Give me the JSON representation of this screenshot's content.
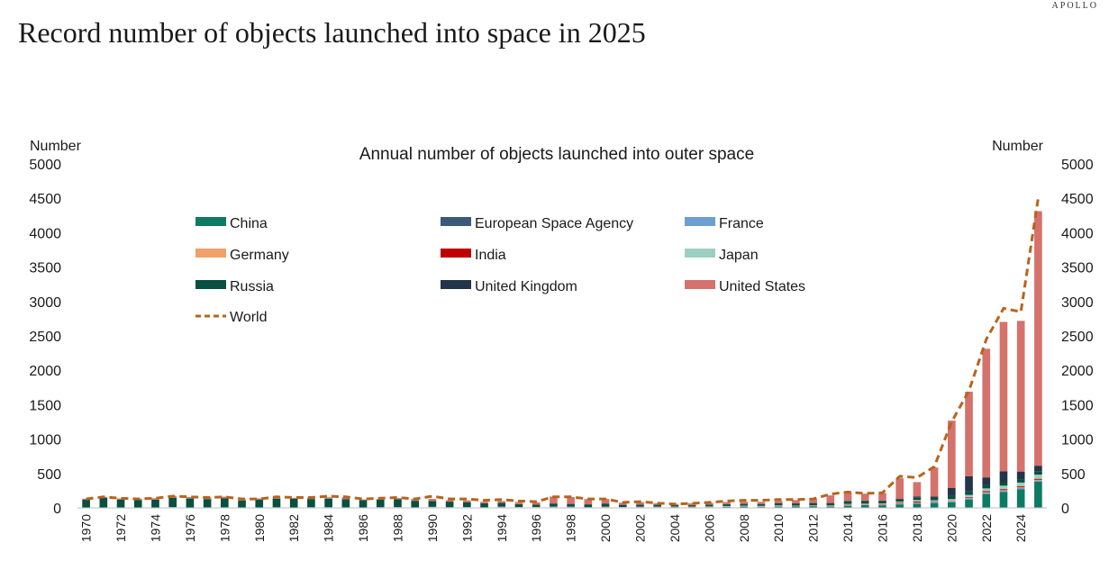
{
  "brand": "APOLLO",
  "page_title": "Record number of objects launched into space in 2025",
  "chart_data": {
    "type": "bar",
    "stacked": true,
    "title": "Annual number of objects launched into outer space",
    "ylabel_left": "Number",
    "ylabel_right": "Number",
    "xlabel": "",
    "ylim": [
      0,
      5000
    ],
    "y_ticks": [
      0,
      500,
      1000,
      1500,
      2000,
      2500,
      3000,
      3500,
      4000,
      4500,
      5000
    ],
    "x_tick_labels": [
      "1970",
      "1972",
      "1974",
      "1976",
      "1978",
      "1980",
      "1982",
      "1984",
      "1986",
      "1988",
      "1990",
      "1992",
      "1994",
      "1996",
      "1998",
      "2000",
      "2002",
      "2004",
      "2006",
      "2008",
      "2010",
      "2012",
      "2014",
      "2016",
      "2018",
      "2020",
      "2022",
      "2024"
    ],
    "grid": false,
    "legend_position": "top-left",
    "categories": [
      "1970",
      "1971",
      "1972",
      "1973",
      "1974",
      "1975",
      "1976",
      "1977",
      "1978",
      "1979",
      "1980",
      "1981",
      "1982",
      "1983",
      "1984",
      "1985",
      "1986",
      "1987",
      "1988",
      "1989",
      "1990",
      "1991",
      "1992",
      "1993",
      "1994",
      "1995",
      "1996",
      "1997",
      "1998",
      "1999",
      "2000",
      "2001",
      "2002",
      "2003",
      "2004",
      "2005",
      "2006",
      "2007",
      "2008",
      "2009",
      "2010",
      "2011",
      "2012",
      "2013",
      "2014",
      "2015",
      "2016",
      "2017",
      "2018",
      "2019",
      "2020",
      "2021",
      "2022",
      "2023",
      "2024",
      "2025"
    ],
    "series": [
      {
        "name": "China",
        "color": "#0d7a64",
        "values": [
          1,
          1,
          1,
          0,
          0,
          3,
          2,
          0,
          1,
          0,
          0,
          3,
          1,
          1,
          2,
          1,
          2,
          2,
          4,
          0,
          5,
          1,
          3,
          1,
          5,
          2,
          3,
          6,
          6,
          1,
          5,
          1,
          5,
          7,
          10,
          6,
          6,
          12,
          15,
          10,
          17,
          20,
          22,
          17,
          30,
          40,
          35,
          50,
          60,
          70,
          80,
          120,
          200,
          230,
          270,
          380
        ]
      },
      {
        "name": "European Space Agency",
        "color": "#3b5a7a",
        "values": [
          0,
          0,
          0,
          0,
          0,
          1,
          1,
          2,
          2,
          2,
          1,
          1,
          1,
          2,
          2,
          3,
          1,
          1,
          1,
          2,
          2,
          1,
          1,
          2,
          2,
          2,
          2,
          3,
          2,
          2,
          2,
          3,
          2,
          2,
          2,
          2,
          2,
          3,
          3,
          3,
          3,
          2,
          2,
          2,
          3,
          3,
          3,
          3,
          3,
          3,
          3,
          3,
          3,
          3,
          3,
          3
        ]
      },
      {
        "name": "France",
        "color": "#6b9fd0",
        "values": [
          2,
          2,
          0,
          0,
          1,
          3,
          0,
          2,
          1,
          1,
          1,
          0,
          0,
          0,
          0,
          1,
          1,
          1,
          1,
          1,
          1,
          1,
          2,
          2,
          2,
          2,
          2,
          3,
          3,
          2,
          2,
          3,
          2,
          2,
          2,
          2,
          3,
          3,
          3,
          3,
          3,
          3,
          3,
          3,
          5,
          5,
          5,
          8,
          10,
          10,
          12,
          15,
          15,
          15,
          15,
          15
        ]
      },
      {
        "name": "Germany",
        "color": "#f0a068",
        "values": [
          0,
          0,
          0,
          1,
          2,
          1,
          1,
          0,
          1,
          0,
          0,
          0,
          0,
          0,
          0,
          0,
          0,
          1,
          1,
          1,
          1,
          2,
          1,
          1,
          1,
          1,
          1,
          1,
          1,
          1,
          3,
          1,
          1,
          2,
          2,
          2,
          4,
          3,
          3,
          3,
          4,
          3,
          3,
          3,
          4,
          4,
          5,
          5,
          6,
          5,
          8,
          10,
          10,
          10,
          10,
          10
        ]
      },
      {
        "name": "India",
        "color": "#c00000",
        "values": [
          0,
          0,
          0,
          0,
          0,
          1,
          0,
          0,
          0,
          1,
          1,
          1,
          2,
          2,
          1,
          0,
          0,
          1,
          2,
          0,
          1,
          2,
          1,
          0,
          2,
          2,
          1,
          1,
          1,
          1,
          1,
          1,
          2,
          3,
          1,
          2,
          1,
          2,
          2,
          3,
          4,
          4,
          3,
          5,
          5,
          6,
          8,
          10,
          15,
          8,
          5,
          10,
          15,
          15,
          15,
          15
        ]
      },
      {
        "name": "Japan",
        "color": "#9ccfbf",
        "values": [
          1,
          1,
          1,
          1,
          2,
          3,
          2,
          4,
          3,
          3,
          4,
          4,
          2,
          4,
          4,
          3,
          3,
          4,
          3,
          4,
          5,
          3,
          4,
          2,
          5,
          4,
          4,
          4,
          4,
          3,
          4,
          4,
          5,
          3,
          2,
          4,
          5,
          4,
          6,
          7,
          7,
          3,
          5,
          6,
          10,
          8,
          10,
          15,
          20,
          15,
          20,
          30,
          40,
          50,
          55,
          60
        ]
      },
      {
        "name": "Russia",
        "color": "#08503f",
        "values": [
          115,
          140,
          120,
          110,
          115,
          135,
          130,
          120,
          130,
          100,
          115,
          125,
          125,
          120,
          125,
          120,
          105,
          110,
          115,
          95,
          85,
          80,
          70,
          60,
          55,
          40,
          35,
          45,
          40,
          40,
          45,
          30,
          30,
          25,
          20,
          20,
          25,
          25,
          25,
          25,
          30,
          30,
          30,
          30,
          40,
          35,
          30,
          30,
          40,
          40,
          50,
          50,
          50,
          50,
          50,
          50
        ]
      },
      {
        "name": "United Kingdom",
        "color": "#24344a",
        "values": [
          0,
          0,
          0,
          0,
          0,
          0,
          0,
          0,
          0,
          0,
          0,
          0,
          0,
          0,
          0,
          0,
          0,
          0,
          0,
          0,
          0,
          1,
          1,
          1,
          1,
          1,
          1,
          1,
          1,
          2,
          2,
          2,
          1,
          2,
          2,
          2,
          2,
          2,
          2,
          3,
          3,
          3,
          4,
          5,
          5,
          5,
          10,
          10,
          10,
          15,
          110,
          220,
          110,
          160,
          110,
          80
        ]
      },
      {
        "name": "United States",
        "color": "#d4726b",
        "values": [
          15,
          15,
          15,
          20,
          20,
          25,
          20,
          25,
          25,
          20,
          15,
          20,
          15,
          20,
          20,
          25,
          10,
          10,
          15,
          25,
          30,
          20,
          25,
          20,
          25,
          30,
          30,
          100,
          100,
          75,
          65,
          30,
          35,
          20,
          15,
          25,
          25,
          30,
          30,
          30,
          30,
          45,
          60,
          110,
          130,
          100,
          110,
          300,
          210,
          420,
          980,
          1230,
          1870,
          2170,
          2190,
          3700
        ]
      }
    ],
    "line_series": {
      "name": "World",
      "color": "#b8631c",
      "style": "dashed",
      "values": [
        130,
        160,
        140,
        130,
        140,
        170,
        160,
        150,
        160,
        130,
        130,
        160,
        150,
        150,
        170,
        160,
        130,
        140,
        150,
        130,
        170,
        130,
        130,
        110,
        120,
        100,
        90,
        160,
        160,
        130,
        130,
        80,
        90,
        70,
        55,
        65,
        80,
        100,
        110,
        110,
        120,
        120,
        130,
        200,
        230,
        210,
        220,
        460,
        440,
        600,
        1250,
        1700,
        2450,
        2900,
        2850,
        4500
      ]
    }
  }
}
